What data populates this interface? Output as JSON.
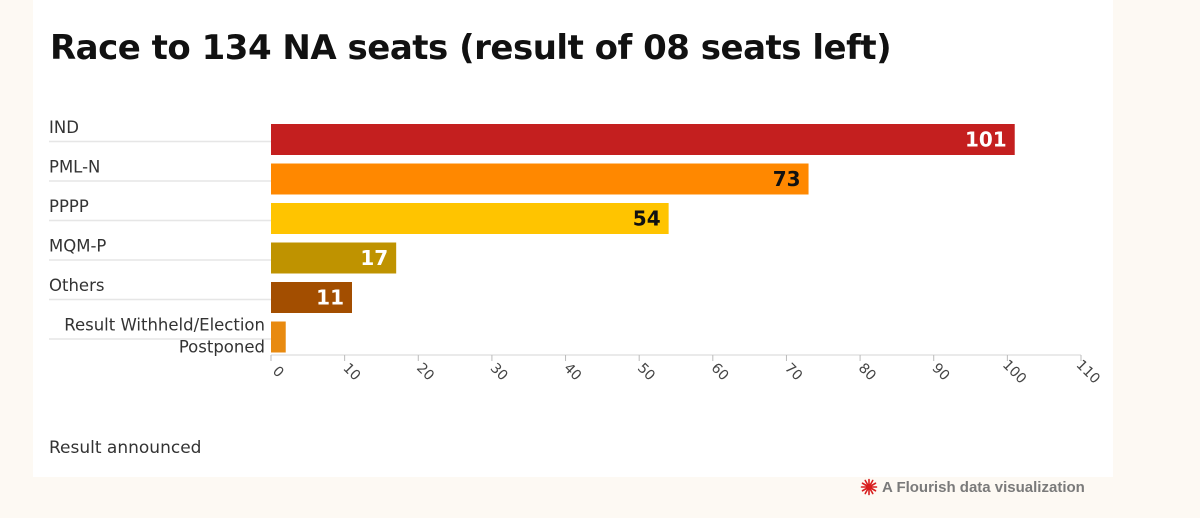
{
  "chart_data": {
    "type": "bar",
    "orientation": "horizontal",
    "title": "Race to 134 NA seats (result of 08 seats left)",
    "categories": [
      "IND",
      "PML-N",
      "PPPP",
      "MQM-P",
      "Others",
      "Result Withheld/Election Postponed"
    ],
    "category_lines": [
      [
        "IND"
      ],
      [
        "PML-N"
      ],
      [
        "PPPP"
      ],
      [
        "MQM-P"
      ],
      [
        "Others"
      ],
      [
        "Result Withheld/Election",
        "Postponed"
      ]
    ],
    "values": [
      101,
      73,
      54,
      17,
      11,
      2
    ],
    "data_labels": [
      "101",
      "73",
      "54",
      "17",
      "11",
      ""
    ],
    "bar_colors": [
      "#c41f1f",
      "#ff8800",
      "#ffc400",
      "#bf9300",
      "#a34e00",
      "#e88a10"
    ],
    "label_colors": [
      "#ffffff",
      "#111111",
      "#111111",
      "#ffffff",
      "#ffffff",
      "#ffffff"
    ],
    "xlim": [
      0,
      110
    ],
    "xticks": [
      0,
      10,
      20,
      30,
      40,
      50,
      60,
      70,
      80,
      90,
      100,
      110
    ],
    "xlabel": "",
    "ylabel": "",
    "grid": false
  },
  "footnote": "Result announced",
  "credit": {
    "icon": "flourish-logo-icon",
    "text": "A Flourish data visualization",
    "logo_color": "#d81e1e"
  }
}
